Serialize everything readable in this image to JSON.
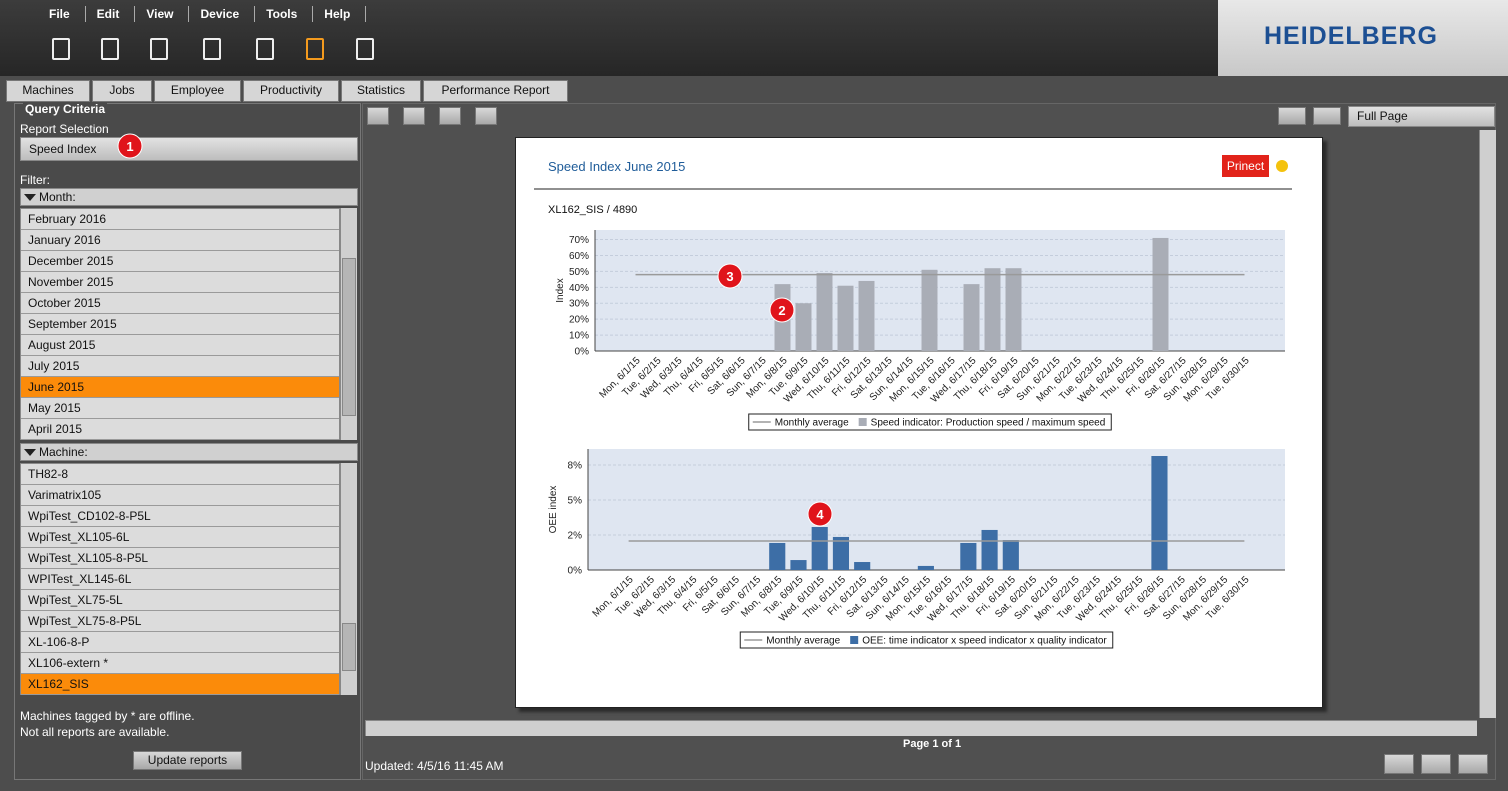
{
  "menu": [
    "File",
    "Edit",
    "View",
    "Device",
    "Tools",
    "Help"
  ],
  "logo": "HEIDELBERG",
  "tabs": [
    "Machines",
    "Jobs",
    "Employee",
    "Productivity",
    "Statistics",
    "Performance Report"
  ],
  "query": {
    "title": "Query Criteria",
    "report_selection_label": "Report Selection",
    "report_selection": "Speed Index",
    "filter_label": "Filter:",
    "month_label": "Month:",
    "months": [
      "February 2016",
      "January 2016",
      "December 2015",
      "November 2015",
      "October 2015",
      "September 2015",
      "August 2015",
      "July 2015",
      "June 2015",
      "May 2015",
      "April 2015"
    ],
    "months_selected": 8,
    "machine_label": "Machine:",
    "machines": [
      "TH82-8",
      "Varimatrix105",
      "WpiTest_CD102-8-P5L",
      "WpiTest_XL105-6L",
      "WpiTest_XL105-8-P5L",
      "WPITest_XL145-6L",
      "WpiTest_XL75-5L",
      "WpiTest_XL75-8-P5L",
      "XL-106-8-P",
      "XL106-extern *",
      "XL162_SIS"
    ],
    "machines_selected": 10,
    "notes": [
      "Machines tagged by * are offline.",
      "Not all reports are available."
    ],
    "update_button": "Update reports"
  },
  "view": {
    "zoom": "Full Page",
    "page": "Page 1 of 1",
    "updated": "Updated: 4/5/16 11:45 AM"
  },
  "report": {
    "title": "Speed Index June 2015",
    "brand": "Prinect",
    "subtitle": "XL162_SIS / 4890"
  },
  "callouts": [
    "1",
    "2",
    "3",
    "4"
  ],
  "chart_data": [
    {
      "type": "bar",
      "ylabel": "Index",
      "categories": [
        "Mon, 6/1/15",
        "Tue, 6/2/15",
        "Wed, 6/3/15",
        "Thu, 6/4/15",
        "Fri, 6/5/15",
        "Sat, 6/6/15",
        "Sun, 6/7/15",
        "Mon, 6/8/15",
        "Tue, 6/9/15",
        "Wed, 6/10/15",
        "Thu, 6/11/15",
        "Fri, 6/12/15",
        "Sat, 6/13/15",
        "Sun, 6/14/15",
        "Mon, 6/15/15",
        "Tue, 6/16/15",
        "Wed, 6/17/15",
        "Thu, 6/18/15",
        "Fri, 6/19/15",
        "Sat, 6/20/15",
        "Sun, 6/21/15",
        "Mon, 6/22/15",
        "Tue, 6/23/15",
        "Wed, 6/24/15",
        "Thu, 6/25/15",
        "Fri, 6/26/15",
        "Sat, 6/27/15",
        "Sun, 6/28/15",
        "Mon, 6/29/15",
        "Tue, 6/30/15"
      ],
      "series": [
        {
          "name": "Monthly average",
          "type": "line",
          "color": "#9a9a9a",
          "values": [
            48,
            48,
            48,
            48,
            48,
            48,
            48,
            48,
            48,
            48,
            48,
            48,
            48,
            48,
            48,
            48,
            48,
            48,
            48,
            48,
            48,
            48,
            48,
            48,
            48,
            48,
            48,
            48,
            48,
            48
          ]
        },
        {
          "name": "Speed indicator: Production speed / maximum speed",
          "type": "bar",
          "color": "#a9adb6",
          "values": [
            null,
            null,
            null,
            null,
            null,
            null,
            null,
            42,
            30,
            49,
            41,
            44,
            null,
            null,
            51,
            null,
            42,
            52,
            52,
            null,
            null,
            null,
            null,
            null,
            null,
            71,
            null,
            null,
            null,
            null
          ]
        }
      ],
      "ylim": [
        0,
        76
      ],
      "yticks": [
        {
          "value": 0,
          "label": "0%"
        },
        {
          "value": 10,
          "label": "10%"
        },
        {
          "value": 20,
          "label": "20%"
        },
        {
          "value": 30,
          "label": "30%"
        },
        {
          "value": 40,
          "label": "40%"
        },
        {
          "value": 50,
          "label": "50%"
        },
        {
          "value": 60,
          "label": "60%"
        },
        {
          "value": 70,
          "label": "70%"
        }
      ],
      "grid": true,
      "legend": "bottom"
    },
    {
      "type": "bar",
      "ylabel": "OEE index",
      "categories": [
        "Mon, 6/1/15",
        "Tue, 6/2/15",
        "Wed, 6/3/15",
        "Thu, 6/4/15",
        "Fri, 6/5/15",
        "Sat, 6/6/15",
        "Sun, 6/7/15",
        "Mon, 6/8/15",
        "Tue, 6/9/15",
        "Wed, 6/10/15",
        "Thu, 6/11/15",
        "Fri, 6/12/15",
        "Sat, 6/13/15",
        "Sun, 6/14/15",
        "Mon, 6/15/15",
        "Tue, 6/16/15",
        "Wed, 6/17/15",
        "Thu, 6/18/15",
        "Fri, 6/19/15",
        "Sat, 6/20/15",
        "Sun, 6/21/15",
        "Mon, 6/22/15",
        "Tue, 6/23/15",
        "Wed, 6/24/15",
        "Thu, 6/25/15",
        "Fri, 6/26/15",
        "Sat, 6/27/15",
        "Sun, 6/28/15",
        "Mon, 6/29/15",
        "Tue, 6/30/15"
      ],
      "series": [
        {
          "name": "Monthly average",
          "type": "line",
          "color": "#9a9a9a",
          "values": [
            2.07,
            2.07,
            2.07,
            2.07,
            2.07,
            2.07,
            2.07,
            2.07,
            2.07,
            2.07,
            2.07,
            2.07,
            2.07,
            2.07,
            2.07,
            2.07,
            2.07,
            2.07,
            2.07,
            2.07,
            2.07,
            2.07,
            2.07,
            2.07,
            2.07,
            2.07,
            2.07,
            2.07,
            2.07,
            2.07
          ]
        },
        {
          "name": "OEE: time indicator x speed indicator x quality indicator",
          "type": "bar",
          "color": "#3d6ea6",
          "values": [
            null,
            null,
            null,
            null,
            null,
            null,
            null,
            1.93,
            0.71,
            3.07,
            2.36,
            0.57,
            null,
            null,
            0.29,
            null,
            1.93,
            2.86,
            2.14,
            null,
            null,
            null,
            null,
            null,
            null,
            8.14,
            null,
            null,
            null,
            null
          ]
        }
      ],
      "ylim": [
        0,
        8.64
      ],
      "yticks": [
        {
          "value": 0,
          "label": "0%"
        },
        {
          "value": 2.5,
          "label": "2%"
        },
        {
          "value": 5,
          "label": "5%"
        },
        {
          "value": 7.5,
          "label": "8%"
        }
      ],
      "grid": true,
      "legend": "bottom"
    }
  ]
}
